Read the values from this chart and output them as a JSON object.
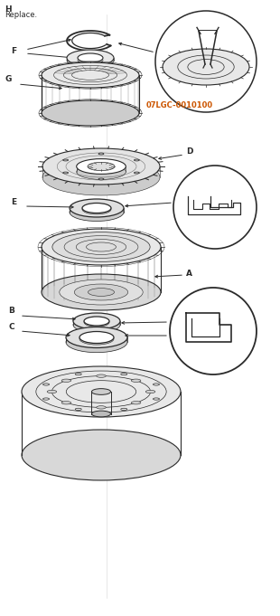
{
  "bg_color": "#ffffff",
  "line_color": "#2a2a2a",
  "label_color": "#000000",
  "orange_color": "#cc5500",
  "title_H": "H",
  "title_H_sub": "Replace.",
  "label_F": "F",
  "label_G": "G",
  "label_D": "D",
  "label_E": "E",
  "label_A": "A",
  "label_B": "B",
  "label_C": "C",
  "tool_code": "07LGC-0010100",
  "fig_width": 3.1,
  "fig_height": 6.81,
  "dpi": 100
}
